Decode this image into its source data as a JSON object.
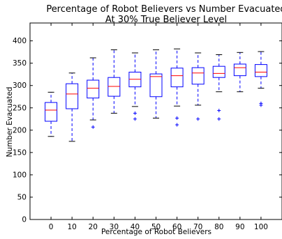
{
  "chart_data": {
    "type": "box",
    "title": "Percentage of Robot Believers vs Number Evacuated",
    "subtitle": "At 30% True Believer Level",
    "xlabel": "Percentage of Robot Believers",
    "ylabel": "Number Evacuated",
    "ylim": [
      0,
      440
    ],
    "yticks": [
      0,
      50,
      100,
      150,
      200,
      250,
      300,
      350,
      400
    ],
    "grid": false,
    "colors": {
      "box": "#0000ff",
      "median": "#ff0000",
      "whisker": "#0000ff",
      "outlier": "#0000ff",
      "axis": "#000000"
    },
    "categories": [
      "0",
      "10",
      "20",
      "30",
      "40",
      "50",
      "60",
      "70",
      "80",
      "90",
      "100"
    ],
    "boxes": [
      {
        "category": "0",
        "whislo": 186,
        "q1": 220,
        "med": 245,
        "q3": 262,
        "whishi": 285,
        "fliers": []
      },
      {
        "category": "10",
        "whislo": 175,
        "q1": 248,
        "med": 281,
        "q3": 304,
        "whishi": 328,
        "fliers": []
      },
      {
        "category": "20",
        "whislo": 223,
        "q1": 272,
        "med": 294,
        "q3": 312,
        "whishi": 362,
        "fliers": [
          207
        ]
      },
      {
        "category": "30",
        "whislo": 238,
        "q1": 276,
        "med": 298,
        "q3": 318,
        "whishi": 380,
        "fliers": []
      },
      {
        "category": "40",
        "whislo": 253,
        "q1": 297,
        "med": 314,
        "q3": 330,
        "whishi": 373,
        "fliers": [
          238,
          225
        ]
      },
      {
        "category": "50",
        "whislo": 227,
        "q1": 275,
        "med": 320,
        "q3": 326,
        "whishi": 380,
        "fliers": []
      },
      {
        "category": "60",
        "whislo": 254,
        "q1": 297,
        "med": 322,
        "q3": 339,
        "whishi": 382,
        "fliers": [
          227,
          212
        ]
      },
      {
        "category": "70",
        "whislo": 256,
        "q1": 303,
        "med": 328,
        "q3": 340,
        "whishi": 373,
        "fliers": [
          225
        ]
      },
      {
        "category": "80",
        "whislo": 286,
        "q1": 318,
        "med": 327,
        "q3": 343,
        "whishi": 369,
        "fliers": [
          244,
          225
        ]
      },
      {
        "category": "90",
        "whislo": 286,
        "q1": 322,
        "med": 340,
        "q3": 348,
        "whishi": 374,
        "fliers": []
      },
      {
        "category": "100",
        "whislo": 294,
        "q1": 320,
        "med": 330,
        "q3": 347,
        "whishi": 376,
        "fliers": [
          260,
          256
        ]
      }
    ]
  }
}
